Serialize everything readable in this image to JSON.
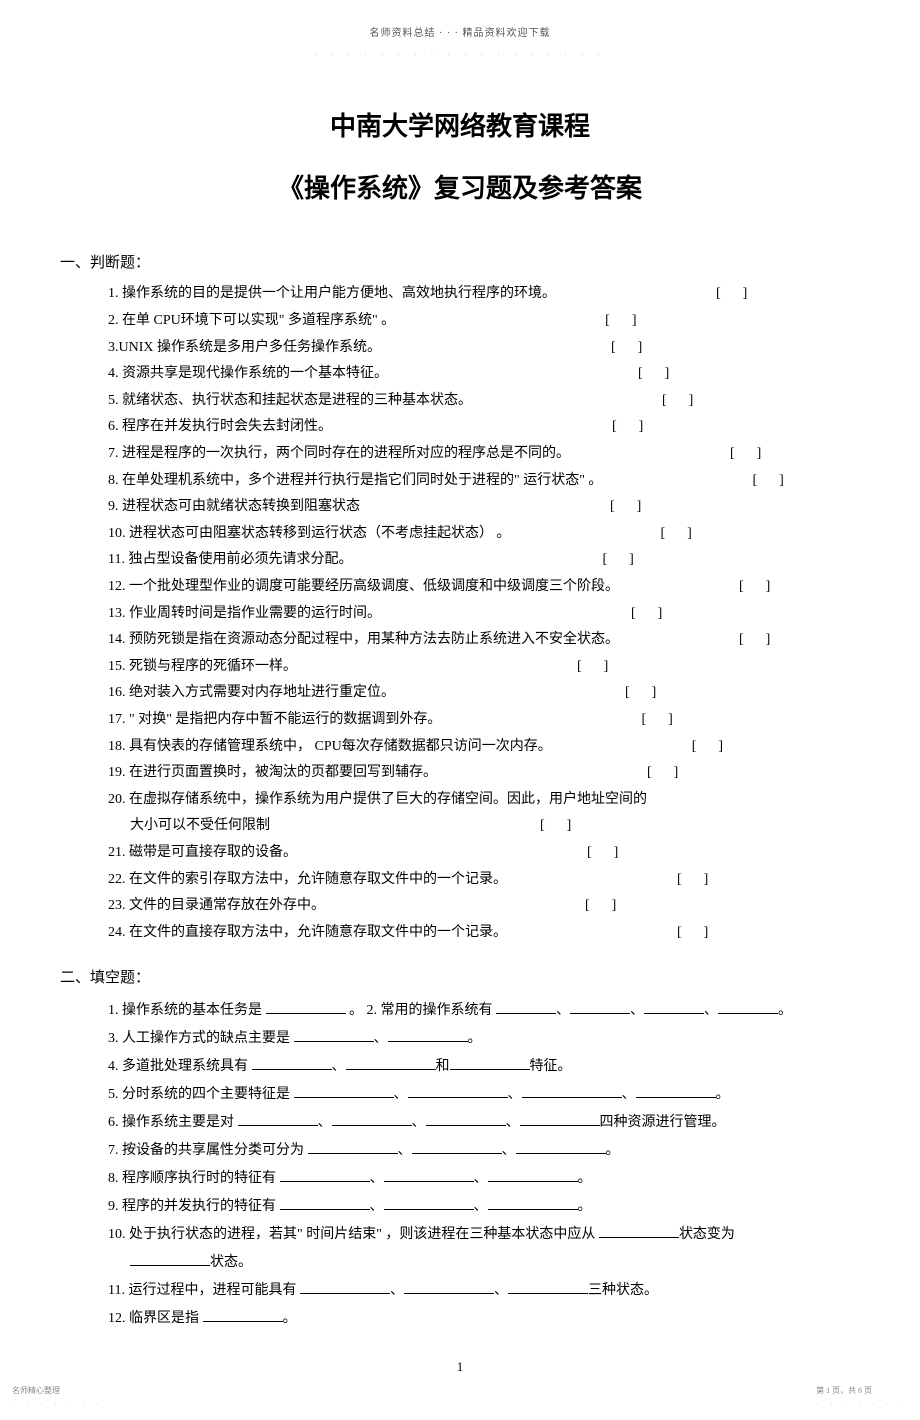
{
  "header": {
    "top_text": "名师资料总结 · · · 精品资料欢迎下载",
    "top_dots": "· · · · · · · · · · · · · · · · · ·"
  },
  "titles": {
    "line1": "中南大学网络教育课程",
    "line2": "《操作系统》复习题及参考答案"
  },
  "sections": {
    "judge_label": "一、判断题：",
    "fill_label": "二、填空题："
  },
  "judge": [
    {
      "text": "1. 操作系统的目的是提供一个让用户能方便地、高效地执行程序的环境。",
      "gap": 160
    },
    {
      "text": "2. 在单 CPU环境下可以实现\" 多道程序系统\"    。",
      "gap": 210
    },
    {
      "text": "3.UNIX 操作系统是多用户多任务操作系统。",
      "gap": 230
    },
    {
      "text": "4. 资源共享是现代操作系统的一个基本特征。",
      "gap": 250
    },
    {
      "text": "5. 就绪状态、执行状态和挂起状态是进程的三种基本状态。",
      "gap": 190
    },
    {
      "text": "6. 程序在并发执行时会失去封闭性。",
      "gap": 280
    },
    {
      "text": "7. 进程是程序的一次执行，两个同时存在的进程所对应的程序总是不同的。",
      "gap": 160
    },
    {
      "text": "8. 在单处理机系统中，多个进程并行执行是指它们同时处于进程的\" 运行状态\" 。",
      "gap": 150
    },
    {
      "text": "9. 进程状态可由就绪状态转换到阻塞状态",
      "gap": 250
    },
    {
      "text": "10. 进程状态可由阻塞状态转移到运行状态（不考虑挂起状态）    。",
      "gap": 150
    },
    {
      "text": "11. 独占型设备使用前必须先请求分配。",
      "gap": 250
    },
    {
      "text": "12. 一个批处理型作业的调度可能要经历高级调度、低级调度和中级调度三个阶段。",
      "gap": 120
    },
    {
      "text": "13. 作业周转时间是指作业需要的运行时间。",
      "gap": 250
    },
    {
      "text": "14. 预防死锁是指在资源动态分配过程中，用某种方法去防止系统进入不安全状态。",
      "gap": 120
    },
    {
      "text": "15. 死锁与程序的死循环一样。",
      "gap": 280
    },
    {
      "text": "16. 绝对装入方式需要对内存地址进行重定位。",
      "gap": 230
    },
    {
      "text": "17. \" 对换\" 是指把内存中暂不能运行的数据调到外存。",
      "gap": 200
    },
    {
      "text": "18. 具有快表的存储管理系统中，   CPU每次存储数据都只访问一次内存。",
      "gap": 140
    },
    {
      "text": "19. 在进行页面置换时，被淘汰的页都要回写到辅存。",
      "gap": 210
    },
    {
      "text": "20. 在虚拟存储系统中，操作系统为用户提供了巨大的存储空间。因此，用户地址空间的",
      "gap": null,
      "cont": true
    },
    {
      "text": "大小可以不受任何限制",
      "gap": 270,
      "sub": true
    },
    {
      "text": "21. 磁带是可直接存取的设备。",
      "gap": 290
    },
    {
      "text": "22. 在文件的索引存取方法中，允许随意存取文件中的一个记录。",
      "gap": 170
    },
    {
      "text": "23. 文件的目录通常存放在外存中。",
      "gap": 260
    },
    {
      "text": "24. 在文件的直接存取方法中，允许随意存取文件中的一个记录。",
      "gap": 170
    }
  ],
  "fill": {
    "q1_pre": "1. 操作系统的基本任务是  ",
    "q1_mid": "。  2.   常用的操作系统有  ",
    "q1_tail": "。",
    "q3": "3. 人工操作方式的缺点主要是  ",
    "q4_a": "4. 多道批处理系统具有  ",
    "q4_b": "和",
    "q4_c": "特征。",
    "q5": "5. 分时系统的四个主要特征是  ",
    "q6_a": "6. 操作系统主要是对  ",
    "q6_b": "四种资源进行管理。",
    "q7": "7. 按设备的共享属性分类可分为   ",
    "q8": "8. 程序顺序执行时的特征有   ",
    "q9": "9. 程序的并发执行的特征有   ",
    "q10_a": "10. 处于执行状态的进程，若其\" 时间片结束\"    ，则该进程在三种基本状态中应从   ",
    "q10_b": "状态变为",
    "q10_c": "状态。",
    "q11_a": "11. 运行过程中，进程可能具有   ",
    "q11_b": "三种状态。",
    "q12": "12. 临界区是指  ",
    "sep": "、",
    "period": "。"
  },
  "footer": {
    "left": "名师精心整理",
    "right": "第 1 页，共 6 页",
    "dots": "· · · · · · ·"
  },
  "page_number": "1",
  "brackets": "[　]"
}
